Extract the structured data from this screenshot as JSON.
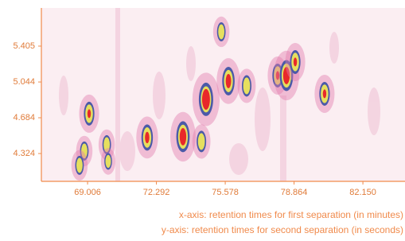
{
  "chart_data": {
    "type": "peaks",
    "xlim": [
      66.8,
      84.16
    ],
    "ylim": [
      4.044,
      5.789
    ],
    "xticks": [
      69.006,
      72.292,
      75.578,
      78.864,
      {
        "value": 82.15,
        "label": "82.150"
      }
    ],
    "yticks": [
      4.324,
      4.684,
      5.044,
      5.405
    ],
    "x": [
      69.08,
      68.85,
      68.62,
      69.92,
      69.99,
      71.85,
      73.56,
      74.44,
      74.66,
      75.39,
      75.73,
      76.6,
      78.08,
      78.5,
      78.92,
      80.32
    ],
    "y": [
      4.725,
      4.349,
      4.205,
      4.413,
      4.245,
      4.485,
      4.493,
      4.445,
      4.869,
      5.549,
      5.053,
      5.005,
      5.109,
      5.109,
      5.245,
      4.925
    ],
    "intensity": [
      0.6,
      0.4,
      0.4,
      0.4,
      0.3,
      0.7,
      0.9,
      0.5,
      1.0,
      0.4,
      0.8,
      0.5,
      0.6,
      0.9,
      0.6,
      0.6
    ],
    "x_label": "x-axis: retention times for first separation (in minutes)",
    "y_label": "y-axis: retention times for second separation (in seconds)"
  }
}
